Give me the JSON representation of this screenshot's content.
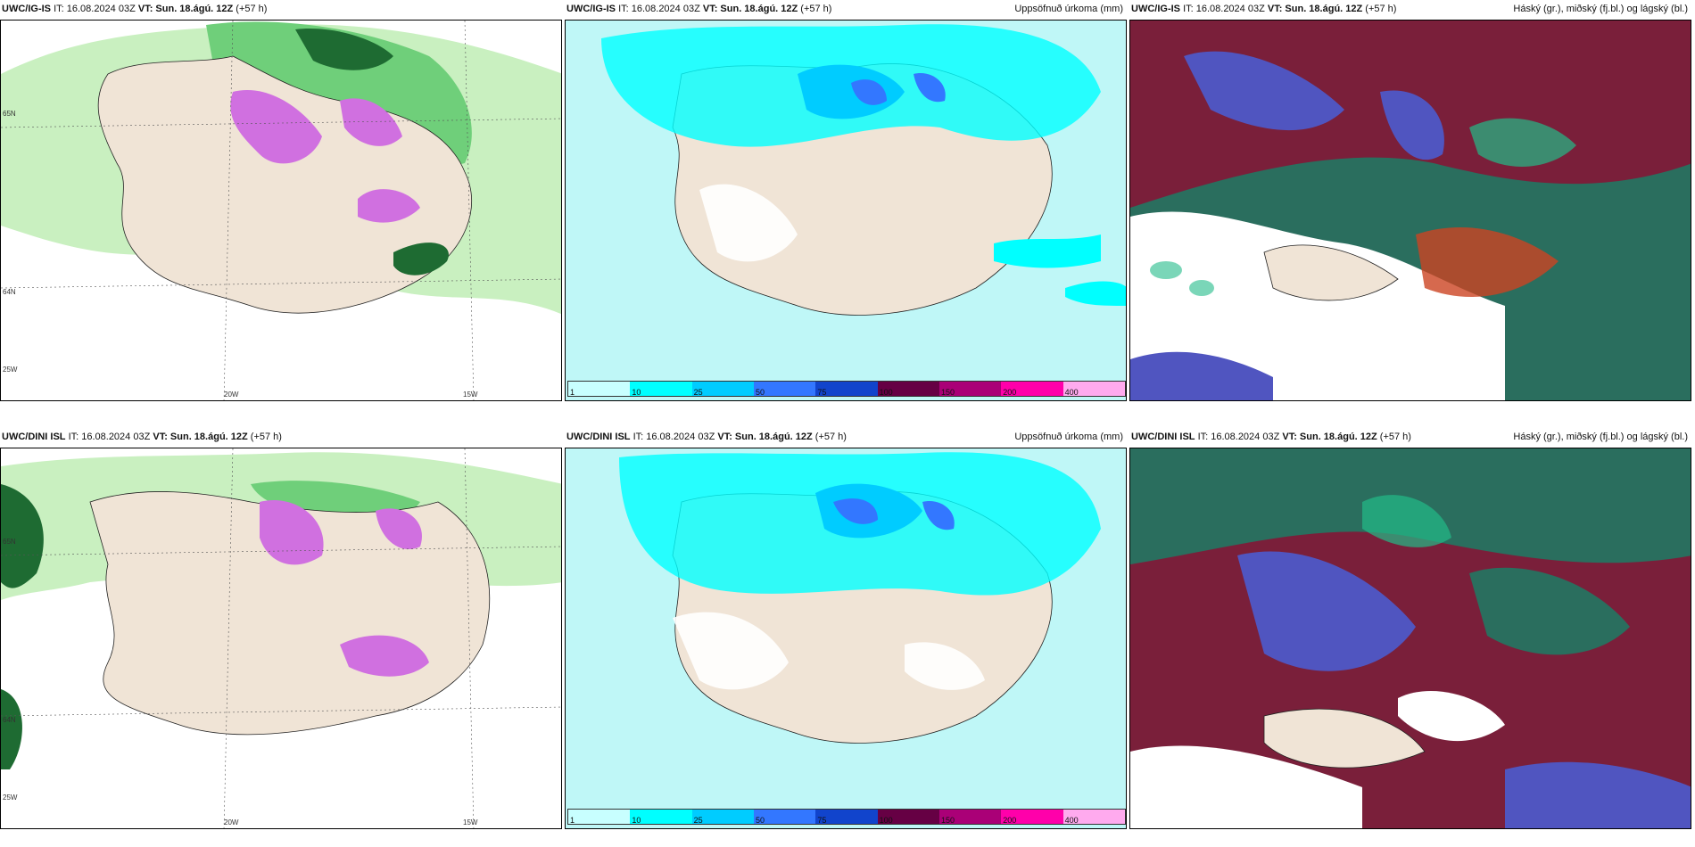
{
  "panels": [
    {
      "model": "UWC/IG-IS",
      "it": "IT: 16.08.2024 03Z",
      "vt_label": "VT:",
      "vt": "Sun. 18.ágú. 12Z",
      "lead": "(+57 h)",
      "right_title": "",
      "kind": "wind"
    },
    {
      "model": "UWC/IG-IS",
      "it": "IT: 16.08.2024 03Z",
      "vt_label": "VT:",
      "vt": "Sun. 18.ágú. 12Z",
      "lead": "(+57 h)",
      "right_title": "Uppsöfnuð úrkoma (mm)",
      "kind": "precip"
    },
    {
      "model": "UWC/IG-IS",
      "it": "IT: 16.08.2024 03Z",
      "vt_label": "VT:",
      "vt": "Sun. 18.ágú. 12Z",
      "lead": "(+57 h)",
      "right_title": "Háský (gr.), miðský (fj.bl.) og lágský (bl.)",
      "kind": "cloud"
    },
    {
      "model": "UWC/DINI ISL",
      "it": "IT: 16.08.2024 03Z",
      "vt_label": "VT:",
      "vt": "Sun. 18.ágú. 12Z",
      "lead": "(+57 h)",
      "right_title": "",
      "kind": "wind"
    },
    {
      "model": "UWC/DINI ISL",
      "it": "IT: 16.08.2024 03Z",
      "vt_label": "VT:",
      "vt": "Sun. 18.ágú. 12Z",
      "lead": "(+57 h)",
      "right_title": "Uppsöfnuð úrkoma (mm)",
      "kind": "precip"
    },
    {
      "model": "UWC/DINI ISL",
      "it": "IT: 16.08.2024 03Z",
      "vt_label": "VT:",
      "vt": "Sun. 18.ágú. 12Z",
      "lead": "(+57 h)",
      "right_title": "Háský (gr.), miðský (fj.bl.) og lágský (bl.)",
      "kind": "cloud"
    }
  ],
  "grid_labels": {
    "lon_20w": "20W",
    "lon_15w": "15W",
    "lon_25w": "25W",
    "lat_65n": "65N",
    "lat_64n": "64N"
  },
  "colorbar": {
    "labels": [
      "1",
      "10",
      "25",
      "50",
      "75",
      "100",
      "150",
      "200",
      "400"
    ],
    "colors": [
      "#c8ffff",
      "#00ffff",
      "#00ccff",
      "#3377ff",
      "#1144cc",
      "#660044",
      "#aa0077",
      "#ff00aa",
      "#ffaaee"
    ]
  },
  "colors": {
    "sea_precip": "#bff7f7",
    "land": "#f0e4d6",
    "green_light": "#c9f0c0",
    "green_mid": "#6fcf7a",
    "green_dark": "#1e6b32",
    "purple": "#d070e0",
    "cloud_high": "#7a1f3a",
    "cloud_mid": "#2a6e5e",
    "cloud_low": "#5055c0",
    "cloud_green": "#22bb88"
  }
}
